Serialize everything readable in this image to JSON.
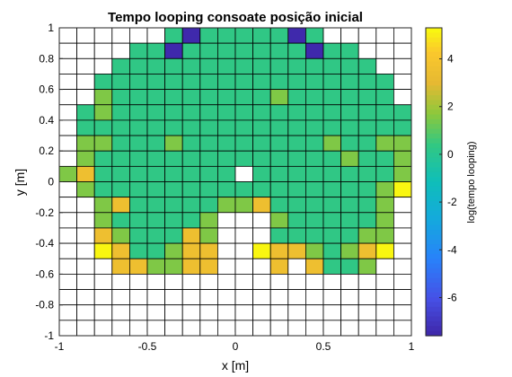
{
  "chart_data": {
    "type": "heatmap",
    "title": "Tempo looping consoate posição inicial",
    "xlabel": "x [m]",
    "ylabel": "y [m]",
    "colorbar_label": "log(tempo looping)",
    "colormap": "parula",
    "xlim": [
      -1,
      1
    ],
    "ylim": [
      -1,
      1
    ],
    "clim": [
      -7.6,
      5.3
    ],
    "grid": "20x20 cells, black cell borders",
    "empty_cell_color": "#ffffff",
    "x_ticks": [
      "-1",
      "-0.5",
      "0",
      "0.5",
      "1"
    ],
    "y_ticks": [
      "1",
      "0.8",
      "0.6",
      "0.4",
      "0.2",
      "0",
      "-0.2",
      "-0.4",
      "-0.6",
      "-0.8",
      "-1"
    ],
    "colorbar_ticks": [
      "4",
      "2",
      "0",
      "-2",
      "-4",
      "-6"
    ],
    "x_centers": [
      -0.95,
      -0.85,
      -0.75,
      -0.65,
      -0.55,
      -0.45,
      -0.35,
      -0.25,
      -0.15,
      -0.05,
      0.05,
      0.15,
      0.25,
      0.35,
      0.45,
      0.55,
      0.65,
      0.75,
      0.85,
      0.95
    ],
    "y_centers": [
      0.95,
      0.85,
      0.75,
      0.65,
      0.55,
      0.45,
      0.35,
      0.25,
      0.15,
      0.05,
      -0.05,
      -0.15,
      -0.25,
      -0.35,
      -0.45,
      -0.55,
      -0.65,
      -0.75,
      -0.85,
      -0.95
    ],
    "values": [
      [
        null,
        null,
        null,
        null,
        null,
        null,
        0.3,
        -7.5,
        0.3,
        0.3,
        0.3,
        0.3,
        0.3,
        -7.5,
        0.3,
        null,
        null,
        null,
        null,
        null
      ],
      [
        null,
        null,
        null,
        null,
        0.3,
        0.3,
        -7.5,
        0.3,
        0.3,
        0.3,
        0.3,
        0.3,
        0.3,
        0.3,
        -7.5,
        0.3,
        0.3,
        null,
        null,
        null
      ],
      [
        null,
        null,
        null,
        0.3,
        0.3,
        0.3,
        0.3,
        0.3,
        0.3,
        0.3,
        0.3,
        0.3,
        0.3,
        0.3,
        0.3,
        0.3,
        0.3,
        0.3,
        null,
        null
      ],
      [
        null,
        null,
        0.3,
        0.3,
        0.3,
        0.3,
        0.3,
        0.3,
        0.3,
        0.3,
        0.3,
        0.3,
        0.3,
        0.3,
        0.3,
        0.3,
        0.3,
        0.3,
        0.3,
        null
      ],
      [
        null,
        null,
        1.5,
        0.3,
        0.3,
        0.3,
        0.3,
        0.3,
        0.3,
        0.3,
        0.3,
        0.3,
        1.5,
        0.3,
        0.3,
        0.3,
        0.3,
        0.3,
        0.3,
        null
      ],
      [
        null,
        0.3,
        1.5,
        0.3,
        0.3,
        0.3,
        0.3,
        0.3,
        0.3,
        0.3,
        0.3,
        0.3,
        0.3,
        0.3,
        0.3,
        0.3,
        0.3,
        0.3,
        0.3,
        0.3
      ],
      [
        null,
        0.3,
        0.3,
        0.3,
        0.3,
        0.3,
        0.3,
        0.3,
        0.3,
        0.3,
        0.3,
        0.3,
        0.3,
        0.3,
        0.3,
        0.3,
        0.3,
        0.3,
        0.3,
        0.3
      ],
      [
        null,
        1.5,
        1.5,
        0.3,
        0.3,
        0.3,
        1.5,
        0.3,
        0.3,
        0.3,
        0.3,
        0.3,
        0.3,
        0.3,
        0.3,
        1.5,
        0.3,
        0.3,
        1.5,
        1.5
      ],
      [
        null,
        1.5,
        0.3,
        0.3,
        0.3,
        0.3,
        0.3,
        0.3,
        0.3,
        0.3,
        0.3,
        0.3,
        0.3,
        0.3,
        0.3,
        0.3,
        1.5,
        0.3,
        0.3,
        1.5
      ],
      [
        1.5,
        3.5,
        0.3,
        0.3,
        0.3,
        0.3,
        0.3,
        0.3,
        0.3,
        0.3,
        null,
        0.3,
        0.3,
        0.3,
        0.3,
        0.3,
        0.3,
        0.3,
        0.3,
        1.5
      ],
      [
        null,
        1.5,
        0.3,
        0.3,
        0.3,
        0.3,
        0.3,
        0.3,
        0.3,
        0.3,
        0.3,
        0.3,
        0.3,
        0.3,
        0.3,
        0.3,
        0.3,
        0.3,
        1.5,
        5.2
      ],
      [
        null,
        null,
        1.5,
        3.5,
        0.3,
        0.3,
        0.3,
        0.3,
        0.3,
        1.5,
        1.5,
        3.5,
        0.3,
        0.3,
        0.3,
        0.3,
        0.3,
        0.3,
        1.5,
        null
      ],
      [
        null,
        null,
        1.5,
        0.3,
        0.3,
        0.3,
        0.3,
        0.3,
        1.5,
        null,
        null,
        null,
        1.5,
        0.3,
        0.3,
        0.3,
        0.3,
        0.3,
        1.5,
        null
      ],
      [
        null,
        null,
        3.5,
        1.5,
        0.3,
        0.3,
        0.3,
        3.5,
        1.5,
        null,
        null,
        null,
        0.3,
        0.3,
        0.3,
        0.3,
        0.3,
        1.5,
        1.5,
        null
      ],
      [
        null,
        null,
        5.2,
        3.5,
        0.3,
        0.3,
        1.5,
        3.5,
        3.5,
        null,
        null,
        5.2,
        3.5,
        3.5,
        1.5,
        0.3,
        1.5,
        3.5,
        5.2,
        null
      ],
      [
        null,
        null,
        null,
        3.5,
        3.5,
        1.5,
        1.5,
        3.5,
        3.5,
        null,
        null,
        null,
        3.5,
        null,
        3.5,
        0.3,
        0.3,
        1.5,
        null,
        null
      ],
      [
        null,
        null,
        null,
        null,
        null,
        null,
        null,
        null,
        null,
        null,
        null,
        null,
        null,
        null,
        null,
        null,
        null,
        null,
        null,
        null
      ],
      [
        null,
        null,
        null,
        null,
        null,
        null,
        null,
        null,
        null,
        null,
        null,
        null,
        null,
        null,
        null,
        null,
        null,
        null,
        null,
        null
      ],
      [
        null,
        null,
        null,
        null,
        null,
        null,
        null,
        null,
        null,
        null,
        null,
        null,
        null,
        null,
        null,
        null,
        null,
        null,
        null,
        null
      ],
      [
        null,
        null,
        null,
        null,
        null,
        null,
        null,
        null,
        null,
        null,
        null,
        null,
        null,
        null,
        null,
        null,
        null,
        null,
        null,
        null
      ]
    ]
  }
}
